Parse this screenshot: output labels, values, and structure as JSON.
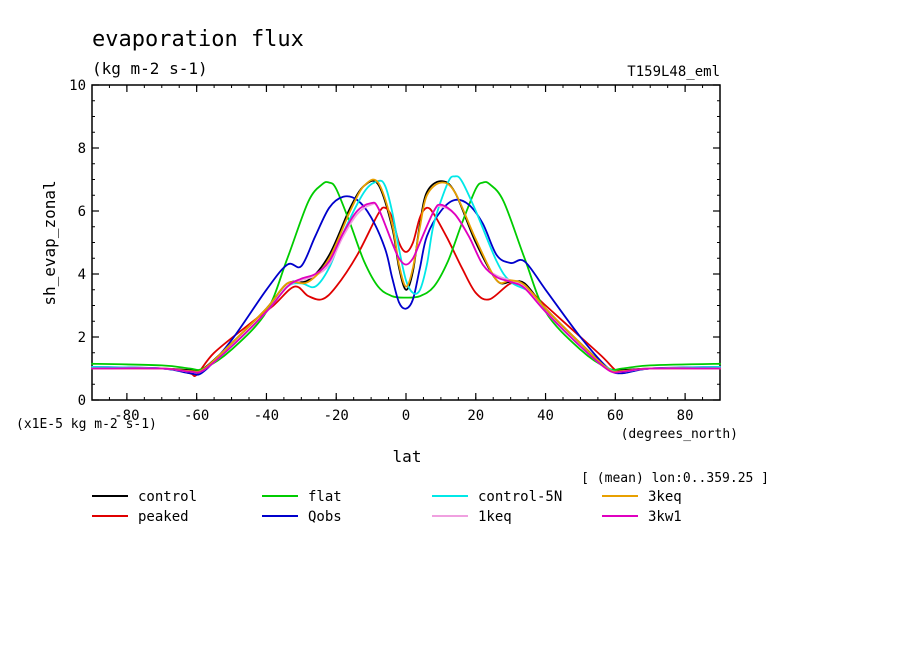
{
  "chart_data": {
    "type": "line",
    "title": "evaporation flux",
    "subtitle": "(kg m-2 s-1)",
    "experiment": "T159L48_eml",
    "ylabel": "sh_evap_zonal",
    "xlabel": "lat",
    "x_units": "(degrees_north)",
    "y_scale_note": "(x1E-5 kg m-2 s-1)",
    "mean_note": "[ (mean) lon:0..359.25 ]",
    "xlim": [
      -90,
      90
    ],
    "ylim": [
      0,
      10
    ],
    "xticks": [
      -80,
      -60,
      -40,
      -20,
      0,
      20,
      40,
      60,
      80
    ],
    "yticks": [
      0,
      2,
      4,
      6,
      8,
      10
    ],
    "grid": false,
    "legend_position": "bottom",
    "series": [
      {
        "name": "control",
        "color": "#000000",
        "x": [
          -90,
          -70,
          -62,
          -58,
          -50,
          -40,
          -34,
          -28,
          -22,
          -16,
          -12,
          -8,
          -4,
          -2,
          0,
          2,
          4,
          6,
          10,
          14,
          20,
          26,
          30,
          34,
          40,
          50,
          58,
          62,
          70,
          90
        ],
        "y": [
          1.0,
          1.0,
          0.95,
          1.0,
          1.8,
          2.9,
          3.7,
          3.8,
          4.6,
          6.1,
          6.8,
          6.85,
          5.5,
          4.2,
          3.5,
          4.1,
          5.6,
          6.6,
          6.95,
          6.6,
          5.0,
          3.8,
          3.75,
          3.7,
          2.9,
          1.8,
          1.0,
          0.95,
          1.0,
          1.0
        ]
      },
      {
        "name": "peaked",
        "color": "#e00000",
        "x": [
          -90,
          -70,
          -62,
          -60,
          -55,
          -45,
          -38,
          -32,
          -28,
          -24,
          -20,
          -14,
          -8,
          -6,
          -4,
          -2,
          0,
          2,
          4,
          6,
          8,
          12,
          16,
          20,
          24,
          30,
          34,
          40,
          48,
          56,
          60,
          62,
          70,
          90
        ],
        "y": [
          1.0,
          1.0,
          0.85,
          0.8,
          1.5,
          2.4,
          3.0,
          3.6,
          3.3,
          3.2,
          3.6,
          4.6,
          5.9,
          6.1,
          5.8,
          5.0,
          4.7,
          5.0,
          5.8,
          6.1,
          5.9,
          5.1,
          4.2,
          3.4,
          3.2,
          3.7,
          3.6,
          3.0,
          2.2,
          1.4,
          0.95,
          0.85,
          1.0,
          1.0
        ]
      },
      {
        "name": "flat",
        "color": "#00cc00",
        "x": [
          -90,
          -70,
          -62,
          -58,
          -50,
          -40,
          -34,
          -28,
          -24,
          -22,
          -20,
          -16,
          -12,
          -8,
          -4,
          0,
          4,
          8,
          12,
          16,
          20,
          22,
          24,
          28,
          34,
          40,
          50,
          58,
          62,
          70,
          90
        ],
        "y": [
          1.15,
          1.1,
          1.0,
          1.0,
          1.6,
          2.8,
          4.5,
          6.3,
          6.85,
          6.9,
          6.7,
          5.6,
          4.4,
          3.6,
          3.3,
          3.25,
          3.3,
          3.6,
          4.4,
          5.6,
          6.7,
          6.9,
          6.85,
          6.3,
          4.5,
          2.8,
          1.6,
          1.0,
          1.0,
          1.1,
          1.15
        ]
      },
      {
        "name": "Qobs",
        "color": "#0000cc",
        "x": [
          -90,
          -70,
          -62,
          -58,
          -50,
          -40,
          -34,
          -30,
          -26,
          -22,
          -18,
          -14,
          -10,
          -6,
          -4,
          -2,
          0,
          2,
          4,
          6,
          10,
          14,
          18,
          22,
          26,
          30,
          34,
          40,
          50,
          58,
          62,
          70,
          90
        ],
        "y": [
          1.05,
          1.0,
          0.85,
          0.9,
          1.9,
          3.5,
          4.3,
          4.25,
          5.2,
          6.1,
          6.45,
          6.35,
          5.8,
          4.8,
          3.9,
          3.1,
          2.9,
          3.2,
          4.2,
          5.2,
          6.0,
          6.35,
          6.2,
          5.6,
          4.6,
          4.35,
          4.4,
          3.5,
          2.0,
          1.0,
          0.85,
          1.0,
          1.05
        ]
      },
      {
        "name": "control-5N",
        "color": "#00e8e8",
        "x": [
          -90,
          -70,
          -62,
          -58,
          -50,
          -40,
          -34,
          -30,
          -26,
          -22,
          -18,
          -12,
          -8,
          -6,
          -4,
          -2,
          0,
          2,
          4,
          6,
          8,
          12,
          14,
          16,
          20,
          26,
          30,
          36,
          40,
          50,
          58,
          62,
          70,
          90
        ],
        "y": [
          1.05,
          1.0,
          0.9,
          0.95,
          1.7,
          2.8,
          3.6,
          3.7,
          3.6,
          4.2,
          5.3,
          6.6,
          6.95,
          6.8,
          6.0,
          4.8,
          3.8,
          3.4,
          3.5,
          4.3,
          5.6,
          6.9,
          7.1,
          6.95,
          6.0,
          4.4,
          3.75,
          3.4,
          2.8,
          1.7,
          1.0,
          0.9,
          1.0,
          1.05
        ]
      },
      {
        "name": "1keq",
        "color": "#f0a0e0",
        "x": [
          -90,
          -70,
          -62,
          -58,
          -50,
          -40,
          -34,
          -30,
          -26,
          -22,
          -18,
          -14,
          -10,
          -8,
          -4,
          -2,
          0,
          2,
          4,
          8,
          10,
          14,
          18,
          22,
          26,
          30,
          34,
          40,
          50,
          58,
          62,
          70,
          90
        ],
        "y": [
          1.0,
          1.0,
          0.9,
          0.95,
          1.7,
          2.8,
          3.6,
          3.8,
          3.95,
          4.3,
          5.2,
          5.9,
          6.2,
          6.1,
          5.0,
          4.5,
          4.3,
          4.5,
          5.0,
          6.0,
          6.15,
          5.9,
          5.2,
          4.3,
          3.95,
          3.8,
          3.6,
          2.8,
          1.7,
          0.95,
          0.9,
          1.0,
          1.0
        ]
      },
      {
        "name": "3keq",
        "color": "#e8a000",
        "x": [
          -90,
          -70,
          -62,
          -58,
          -50,
          -40,
          -34,
          -28,
          -22,
          -16,
          -12,
          -8,
          -4,
          -2,
          0,
          2,
          4,
          6,
          10,
          14,
          20,
          26,
          30,
          34,
          40,
          50,
          58,
          62,
          70,
          90
        ],
        "y": [
          1.0,
          1.0,
          0.92,
          0.98,
          1.8,
          2.9,
          3.7,
          3.75,
          4.5,
          6.0,
          6.8,
          6.9,
          5.6,
          4.3,
          3.6,
          4.2,
          5.5,
          6.5,
          6.9,
          6.6,
          5.1,
          3.8,
          3.8,
          3.65,
          2.9,
          1.8,
          0.98,
          0.92,
          1.0,
          1.0
        ]
      },
      {
        "name": "3kw1",
        "color": "#e000c0",
        "x": [
          -90,
          -70,
          -62,
          -58,
          -50,
          -40,
          -34,
          -30,
          -26,
          -22,
          -18,
          -14,
          -10,
          -8,
          -4,
          -2,
          0,
          2,
          4,
          8,
          10,
          14,
          18,
          22,
          26,
          30,
          34,
          40,
          50,
          58,
          62,
          70,
          90
        ],
        "y": [
          1.0,
          1.0,
          0.9,
          0.95,
          1.7,
          2.8,
          3.6,
          3.85,
          4.0,
          4.4,
          5.3,
          6.0,
          6.25,
          6.1,
          5.0,
          4.5,
          4.3,
          4.5,
          5.0,
          6.0,
          6.2,
          5.9,
          5.2,
          4.3,
          3.9,
          3.75,
          3.55,
          2.8,
          1.7,
          0.95,
          0.9,
          1.0,
          1.0
        ]
      }
    ]
  }
}
